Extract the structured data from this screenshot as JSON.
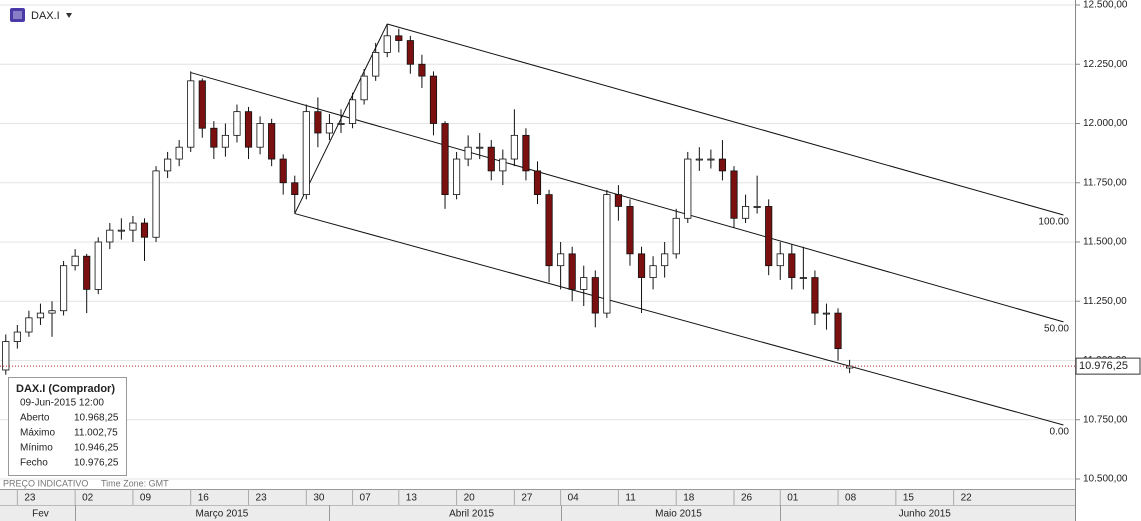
{
  "header": {
    "symbol": "DAX.I"
  },
  "info_box": {
    "title": "DAX.I (Comprador)",
    "time": "09-Jun-2015 12:00",
    "rows": [
      {
        "label": "Aberto",
        "value": "10.968,25"
      },
      {
        "label": "Máximo",
        "value": "11.002,75"
      },
      {
        "label": "Mínimo",
        "value": "10.946,25"
      },
      {
        "label": "Fecho",
        "value": "10.976,25"
      }
    ]
  },
  "footer": {
    "note": "PREÇO INDICATIVO",
    "timezone": "Time Zone: GMT"
  },
  "chart_data": {
    "type": "candlestick",
    "up_color": "#ffffff",
    "down_color": "#7a1010",
    "outline_color": "#111111",
    "open": [
      10960,
      11080,
      11120,
      11180,
      11200,
      11210,
      11400,
      11440,
      11300,
      11500,
      11550,
      11550,
      11580,
      11520,
      11800,
      11850,
      11900,
      12180,
      11980,
      11900,
      11950,
      12050,
      11900,
      12000,
      11850,
      11750,
      11700,
      12050,
      11960,
      12000,
      12000,
      12100,
      12200,
      12300,
      12370,
      12350,
      12250,
      12200,
      12000,
      11700,
      11850,
      11900,
      11900,
      11800,
      11850,
      11950,
      11800,
      11700,
      11400,
      11450,
      11300,
      11350,
      11200,
      11700,
      11650,
      11450,
      11350,
      11400,
      11450,
      11600,
      11850,
      11850,
      11850,
      11800,
      11600,
      11650,
      11650,
      11400,
      11450,
      11350,
      11350,
      11200,
      11200,
      10968.25
    ],
    "high": [
      11110,
      11150,
      11210,
      11240,
      11250,
      11420,
      11470,
      11450,
      11520,
      11580,
      11600,
      11610,
      11600,
      11820,
      11880,
      11930,
      12220,
      12190,
      12010,
      12000,
      12080,
      12070,
      12030,
      12020,
      11870,
      11780,
      12080,
      12110,
      12040,
      12060,
      12130,
      12230,
      12340,
      12420,
      12400,
      12370,
      12290,
      12220,
      12010,
      11880,
      11950,
      11960,
      11930,
      11890,
      12060,
      11980,
      11840,
      11720,
      11500,
      11480,
      11400,
      11380,
      11720,
      11740,
      11680,
      11480,
      11440,
      11500,
      11640,
      11880,
      11900,
      11890,
      11930,
      11820,
      11700,
      11780,
      11680,
      11500,
      11490,
      11480,
      11380,
      11240,
      11220,
      11002.75
    ],
    "low": [
      10940,
      11050,
      11100,
      11150,
      11100,
      11190,
      11380,
      11200,
      11280,
      11470,
      11510,
      11500,
      11420,
      11500,
      11770,
      11820,
      11880,
      11940,
      11850,
      11860,
      11920,
      11850,
      11870,
      11820,
      11700,
      11620,
      11680,
      11900,
      11930,
      11960,
      11980,
      12080,
      12180,
      12280,
      12300,
      12210,
      12150,
      11950,
      11640,
      11680,
      11820,
      11850,
      11760,
      11740,
      11820,
      11760,
      11660,
      11330,
      11300,
      11250,
      11230,
      11140,
      11180,
      11590,
      11400,
      11200,
      11300,
      11350,
      11430,
      11580,
      11800,
      11810,
      11760,
      11560,
      11580,
      11620,
      11360,
      11340,
      11300,
      11300,
      11150,
      11130,
      11000,
      10946.25
    ],
    "close": [
      11080,
      11120,
      11180,
      11200,
      11210,
      11400,
      11440,
      11300,
      11500,
      11550,
      11550,
      11580,
      11520,
      11800,
      11850,
      11900,
      12180,
      11980,
      11900,
      11950,
      12050,
      11900,
      12000,
      11850,
      11750,
      11700,
      12050,
      11960,
      12000,
      12000,
      12100,
      12200,
      12300,
      12370,
      12350,
      12250,
      12200,
      12000,
      11700,
      11850,
      11900,
      11900,
      11800,
      11850,
      11950,
      11800,
      11700,
      11400,
      11450,
      11300,
      11350,
      11200,
      11700,
      11650,
      11450,
      11350,
      11400,
      11450,
      11600,
      11850,
      11850,
      11850,
      11800,
      11600,
      11650,
      11650,
      11400,
      11450,
      11350,
      11350,
      11200,
      11200,
      11050,
      10976.25
    ],
    "xlim": [
      -0.5,
      92.5
    ],
    "xticks": [
      {
        "value": 1,
        "label": "23"
      },
      {
        "value": 6,
        "label": "02"
      },
      {
        "value": 11,
        "label": "09"
      },
      {
        "value": 16,
        "label": "16"
      },
      {
        "value": 21,
        "label": "23"
      },
      {
        "value": 26,
        "label": "30"
      },
      {
        "value": 30,
        "label": "07"
      },
      {
        "value": 34,
        "label": "13"
      },
      {
        "value": 39,
        "label": "20"
      },
      {
        "value": 44,
        "label": "27"
      },
      {
        "value": 48,
        "label": "04"
      },
      {
        "value": 53,
        "label": "11"
      },
      {
        "value": 58,
        "label": "18"
      },
      {
        "value": 63,
        "label": "26"
      },
      {
        "value": 67,
        "label": "01"
      },
      {
        "value": 72,
        "label": "08"
      },
      {
        "value": 77,
        "label": "15"
      },
      {
        "value": 82,
        "label": "22"
      }
    ],
    "months": [
      {
        "value": 3,
        "label": "Fev"
      },
      {
        "value": 18.7,
        "label": "Março 2015"
      },
      {
        "value": 40.3,
        "label": "Abril 2015"
      },
      {
        "value": 58.2,
        "label": "Maio 2015"
      },
      {
        "value": 79.5,
        "label": "Junho 2015"
      }
    ],
    "ylim": [
      10500,
      12500
    ],
    "yticks": [
      {
        "value": 10500,
        "label": "10.500,00"
      },
      {
        "value": 10750,
        "label": "10.750,00"
      },
      {
        "value": 11000,
        "label": "11.000,00"
      },
      {
        "value": 11250,
        "label": "11.250,00"
      },
      {
        "value": 11500,
        "label": "11.500,00"
      },
      {
        "value": 11750,
        "label": "11.750,00"
      },
      {
        "value": 12000,
        "label": "12.000,00"
      },
      {
        "value": 12250,
        "label": "12.250,00"
      },
      {
        "value": 12500,
        "label": "12.500,00"
      }
    ],
    "grid": true,
    "last_price": {
      "value": 10976.25,
      "label": "10.976,25",
      "color": "#b22222"
    },
    "channel": [
      {
        "points": [
          [
            33,
            12420
          ],
          [
            91.5,
            11614
          ]
        ],
        "label": "100.00"
      },
      {
        "points": [
          [
            16,
            12215
          ],
          [
            91.5,
            11163
          ]
        ],
        "label": "50.00"
      },
      {
        "points": [
          [
            25,
            11620
          ],
          [
            91.5,
            10728
          ]
        ],
        "label": "0.00"
      },
      {
        "points": [
          [
            25,
            11620
          ],
          [
            33,
            12420
          ]
        ]
      }
    ]
  }
}
